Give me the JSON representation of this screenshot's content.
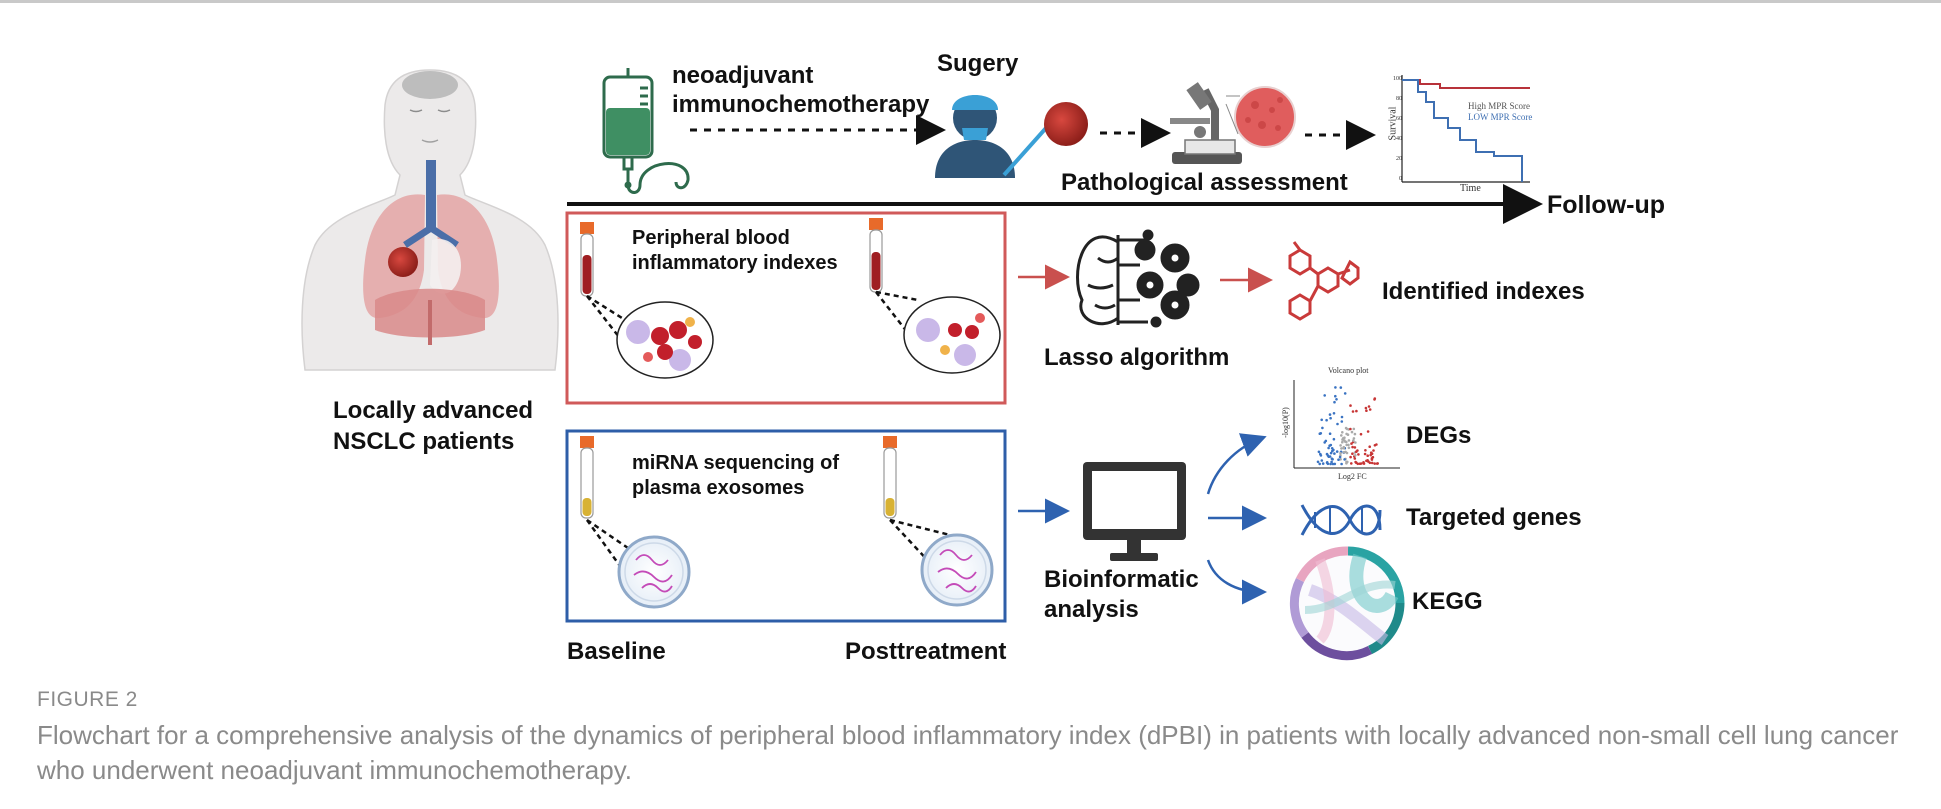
{
  "labels": {
    "neoadjuvant": "neoadjuvant",
    "immunochemotherapy": "immunochemotherapy",
    "surgery": "Sugery",
    "pathological": "Pathological assessment",
    "followup": "Follow-up",
    "patients_line1": "Locally advanced",
    "patients_line2": "NSCLC patients",
    "pbi_line1": "Peripheral blood",
    "pbi_line2": "inflammatory indexes",
    "mirna_line1": "miRNA sequencing of",
    "mirna_line2": "plasma exosomes",
    "baseline": "Baseline",
    "posttreatment": "Posttreatment",
    "lasso": "Lasso algorithm",
    "identified": "Identified indexes",
    "bio_line1": "Bioinformatic",
    "bio_line2": "analysis",
    "degs": "DEGs",
    "targeted": "Targeted genes",
    "kegg": "KEGG"
  },
  "survival_plot": {
    "ylabel": "Survival",
    "xlabel": "Time",
    "legend_high": "High MPR Score",
    "legend_low": "LOW MPR Score",
    "yticks": [
      "100",
      "80",
      "60",
      "40",
      "20",
      "0"
    ]
  },
  "volcano_plot": {
    "title": "Volcano plot",
    "xlabel": "Log2 FC",
    "ylabel": "-log10(P)"
  },
  "figure": {
    "label": "FIGURE 2",
    "caption": "Flowchart for a comprehensive analysis of the dynamics of peripheral blood inflammatory index (dPBI) in patients with locally advanced non-small cell lung cancer who underwent neoadjuvant immunochemotherapy."
  },
  "colors": {
    "red_box": "#d05a5a",
    "blue_box": "#2e5ea8",
    "arrow_red": "#c9504e",
    "arrow_blue": "#2e62b0",
    "caption": "#8a8a8a"
  }
}
